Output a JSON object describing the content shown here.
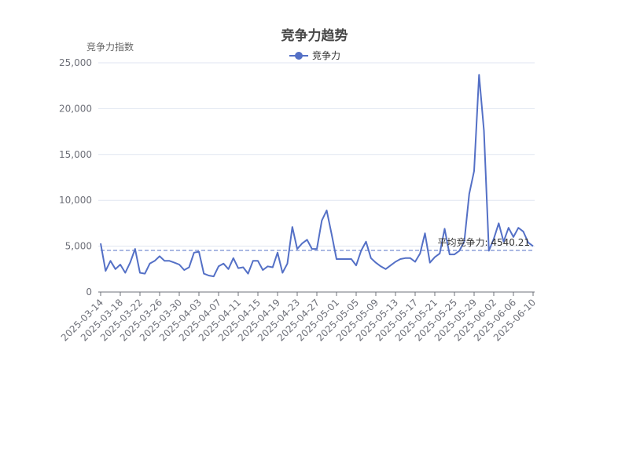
{
  "chart_data": {
    "type": "line",
    "title": "竞争力趋势",
    "ylabel": "竞争力指数",
    "ylim": [
      0,
      25000
    ],
    "yticks": [
      0,
      5000,
      10000,
      15000,
      20000,
      25000
    ],
    "ytick_labels": [
      "0",
      "5,000",
      "10,000",
      "15,000",
      "20,000",
      "25,000"
    ],
    "grid": true,
    "legend_position": "top-center",
    "x_start": "2025-03-14",
    "x_end": "2025-06-11",
    "xtick_labels": [
      "2025-03-14",
      "2025-03-18",
      "2025-03-22",
      "2025-03-26",
      "2025-03-30",
      "2025-04-03",
      "2025-04-07",
      "2025-04-11",
      "2025-04-15",
      "2025-04-19",
      "2025-04-23",
      "2025-04-27",
      "2025-05-01",
      "2025-05-05",
      "2025-05-09",
      "2025-05-13",
      "2025-05-17",
      "2025-05-21",
      "2025-05-25",
      "2025-05-29",
      "2025-06-02",
      "2025-06-06",
      "2025-06-10"
    ],
    "series": [
      {
        "name": "竞争力",
        "color": "#5470c6",
        "values": [
          5300,
          2300,
          3400,
          2500,
          3000,
          2100,
          3200,
          4700,
          2100,
          2000,
          3100,
          3400,
          3900,
          3400,
          3400,
          3200,
          3000,
          2400,
          2700,
          4300,
          4400,
          2000,
          1800,
          1700,
          2800,
          3100,
          2500,
          3700,
          2600,
          2700,
          2000,
          3400,
          3400,
          2400,
          2800,
          2700,
          4300,
          2100,
          3100,
          7100,
          4700,
          5300,
          5700,
          4700,
          4700,
          7800,
          8900,
          6300,
          3600,
          3600,
          3600,
          3600,
          2900,
          4500,
          5500,
          3700,
          3200,
          2800,
          2500,
          2900,
          3300,
          3600,
          3700,
          3700,
          3300,
          4200,
          6400,
          3200,
          3800,
          4200,
          6900,
          4100,
          4100,
          4500,
          5500,
          10700,
          13200,
          23700,
          17600,
          4500,
          5800,
          7500,
          5500,
          7000,
          6000,
          7000,
          6600,
          5400,
          5000
        ]
      }
    ],
    "average": {
      "value": 4540.21,
      "label": "平均竞争力: 4540.21",
      "color": "#5470c6"
    }
  }
}
